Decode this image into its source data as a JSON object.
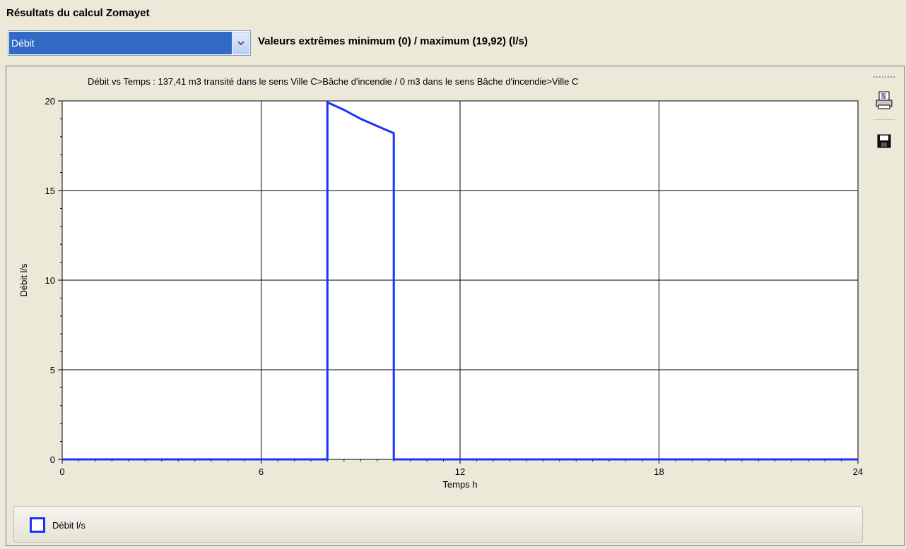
{
  "page": {
    "title": "Résultats du calcul Zomayet"
  },
  "selector": {
    "value": "Débit"
  },
  "extremes": {
    "text": "Valeurs extrêmes minimum (0) / maximum (19,92) (l/s)"
  },
  "toolbar": {
    "print_icon": "print-preview-icon",
    "save_icon": "save-disk-icon"
  },
  "colors": {
    "series": "#1a32ff",
    "grid": "#000000",
    "background": "#ece9d8"
  },
  "chart_data": {
    "type": "line",
    "title": "Débit vs Temps : 137,41 m3 transité dans le sens Ville C>Bâche d'incendie  /  0 m3 dans le sens Bâche d'incendie>Ville C",
    "xlabel": "Temps h",
    "ylabel": "Débit l/s",
    "xlim": [
      0,
      24
    ],
    "ylim": [
      0,
      20
    ],
    "xticks": [
      0,
      6,
      12,
      18,
      24
    ],
    "yticks": [
      0,
      5,
      10,
      15,
      20
    ],
    "grid": true,
    "legend_position": "bottom",
    "series": [
      {
        "name": "Débit l/s",
        "x": [
          0,
          8,
          8,
          8.5,
          9,
          9.5,
          10,
          10,
          24
        ],
        "y": [
          0,
          0,
          19.92,
          19.5,
          19.0,
          18.6,
          18.2,
          0,
          0
        ]
      }
    ]
  }
}
